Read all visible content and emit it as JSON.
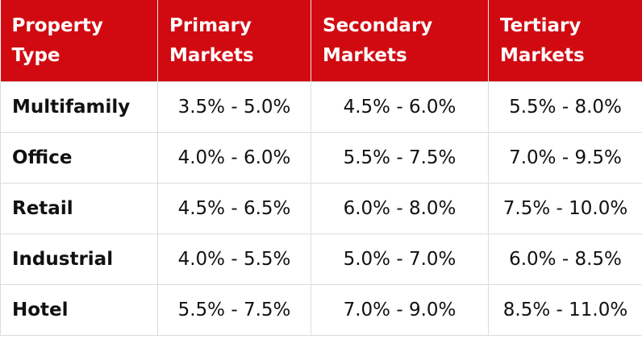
{
  "table": {
    "header": [
      "Property Type",
      "Primary Markets",
      "Secondary Markets",
      "Tertiary Markets"
    ],
    "rows": [
      [
        "Multifamily",
        "3.5% - 5.0%",
        "4.5% - 6.0%",
        "5.5% - 8.0%"
      ],
      [
        "Office",
        "4.0% - 6.0%",
        "5.5% - 7.5%",
        "7.0% - 9.5%"
      ],
      [
        "Retail",
        "4.5% - 6.5%",
        "6.0% - 8.0%",
        "7.5% - 10.0%"
      ],
      [
        "Industrial",
        "4.0% - 5.5%",
        "5.0% - 7.0%",
        "6.0% - 8.5%"
      ],
      [
        "Hotel",
        "5.5% - 7.5%",
        "7.0% - 9.0%",
        "8.5% - 11.0%"
      ]
    ]
  }
}
